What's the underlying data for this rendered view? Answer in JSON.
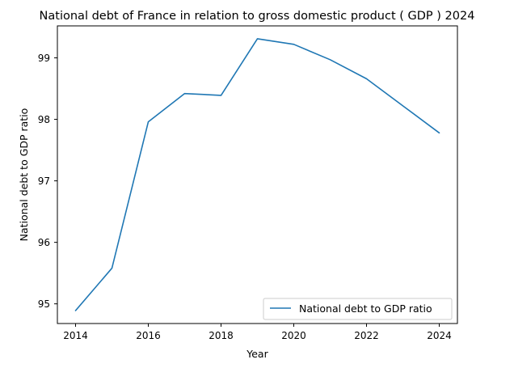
{
  "chart_data": {
    "type": "line",
    "title": "National debt of France in relation to gross domestic product ( GDP ) 2024",
    "xlabel": "Year",
    "ylabel": "National debt to GDP ratio",
    "x": [
      2014,
      2015,
      2016,
      2017,
      2018,
      2019,
      2020,
      2021,
      2022,
      2023,
      2024
    ],
    "series": [
      {
        "name": "National debt to GDP ratio",
        "values": [
          94.89,
          95.58,
          97.96,
          98.42,
          98.39,
          99.31,
          99.22,
          98.97,
          98.66,
          98.22,
          97.78
        ],
        "color": "#1f77b4"
      }
    ],
    "xlim": [
      2013.5,
      2024.5
    ],
    "ylim": [
      94.68,
      99.52
    ],
    "x_ticks": [
      "2014",
      "2016",
      "2018",
      "2020",
      "2022",
      "2024"
    ],
    "y_ticks": [
      "95",
      "96",
      "97",
      "98",
      "99"
    ],
    "grid": false,
    "legend_position": "lower-right"
  }
}
